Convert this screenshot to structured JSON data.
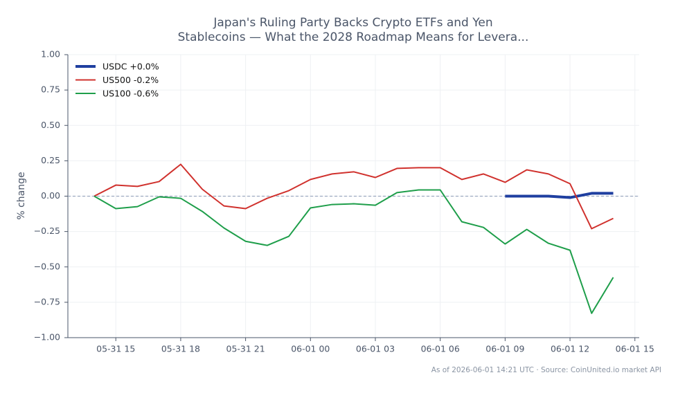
{
  "chart_data": {
    "type": "line",
    "title": [
      "Japan's Ruling Party Backs Crypto ETFs and Yen",
      "Stablecoins — What the 2028 Roadmap Means for Levera..."
    ],
    "y_label": "% change",
    "footnote": "As of 2026-06-01 14:21 UTC · Source: CoinUnited.io market API",
    "x": [
      "05-31 14",
      "05-31 15",
      "05-31 16",
      "05-31 17",
      "05-31 18",
      "05-31 19",
      "05-31 20",
      "05-31 21",
      "05-31 22",
      "05-31 23",
      "06-01 00",
      "06-01 01",
      "06-01 02",
      "06-01 03",
      "06-01 04",
      "06-01 05",
      "06-01 06",
      "06-01 07",
      "06-01 08",
      "06-01 09",
      "06-01 10",
      "06-01 11",
      "06-01 12",
      "06-01 13",
      "06-01 14"
    ],
    "series": [
      {
        "name": "USDC +0.0%",
        "color": "#1f3fa0",
        "width": 4,
        "values": [
          null,
          null,
          null,
          null,
          null,
          null,
          null,
          null,
          null,
          null,
          null,
          null,
          null,
          null,
          null,
          null,
          null,
          null,
          null,
          0,
          0,
          0,
          -0.01,
          0.02,
          0.02
        ]
      },
      {
        "name": "US500 -0.2%",
        "color": "#d0312d",
        "width": 2,
        "values": [
          0,
          0.078,
          0.069,
          0.103,
          0.225,
          0.049,
          -0.069,
          -0.088,
          -0.015,
          0.039,
          0.118,
          0.157,
          0.172,
          0.132,
          0.196,
          0.201,
          0.201,
          0.118,
          0.157,
          0.098,
          0.186,
          0.157,
          0.088,
          -0.23,
          -0.157
        ]
      },
      {
        "name": "US100 -0.6%",
        "color": "#1e9e4a",
        "width": 2,
        "values": [
          0,
          -0.088,
          -0.074,
          -0.005,
          -0.015,
          -0.108,
          -0.225,
          -0.319,
          -0.348,
          -0.284,
          -0.083,
          -0.059,
          -0.054,
          -0.064,
          0.025,
          0.044,
          0.044,
          -0.181,
          -0.221,
          -0.338,
          -0.235,
          -0.333,
          -0.382,
          -0.828,
          -0.574
        ]
      }
    ],
    "xlim": [
      "05-31 12:47",
      "06-01 15:12"
    ],
    "xticks": [
      "05-31 15",
      "05-31 18",
      "05-31 21",
      "06-01 00",
      "06-01 03",
      "06-01 06",
      "06-01 09",
      "06-01 12",
      "06-01 15"
    ],
    "ylim": [
      -1,
      1
    ],
    "yticks": [
      {
        "value": 1,
        "label": "1.00"
      },
      {
        "value": 0.75,
        "label": "0.75"
      },
      {
        "value": 0.5,
        "label": "0.50"
      },
      {
        "value": 0.25,
        "label": "0.25"
      },
      {
        "value": 0,
        "label": "0.00"
      },
      {
        "value": -0.25,
        "label": "−0.25"
      },
      {
        "value": -0.5,
        "label": "−0.50"
      },
      {
        "value": -0.75,
        "label": "−0.75"
      },
      {
        "value": -1,
        "label": "−1.00"
      }
    ],
    "reference_line": 0,
    "grid": true,
    "legend": "upper left"
  }
}
